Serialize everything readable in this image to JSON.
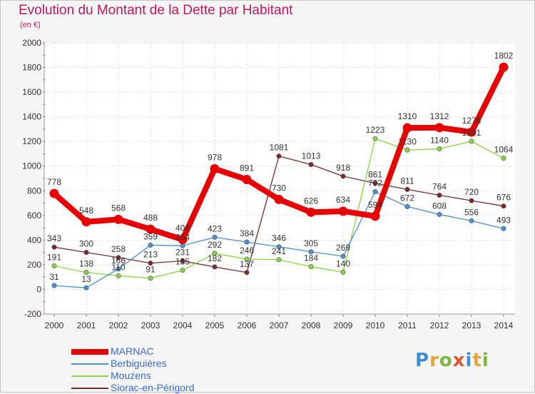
{
  "chart_data": {
    "type": "line",
    "title": "Evolution du Montant de la Dette par Habitant",
    "unit_label": "(en €)",
    "x": [
      "2000",
      "2001",
      "2002",
      "2003",
      "2004",
      "2005",
      "2006",
      "2007",
      "2008",
      "2009",
      "2010",
      "2011",
      "2012",
      "2013",
      "2014"
    ],
    "ylim": [
      -200,
      2000
    ],
    "yticks": [
      -200,
      0,
      200,
      400,
      600,
      800,
      1000,
      1200,
      1400,
      1600,
      1800,
      2000
    ],
    "grid": true,
    "legend_placement": "bottom-left",
    "series": [
      {
        "name": "MARNAC",
        "color": "#e60000",
        "values": [
          778,
          548,
          568,
          488,
          404,
          978,
          891,
          730,
          626,
          634,
          594,
          1310,
          1312,
          1276,
          1802
        ],
        "labels": [
          "778",
          "548",
          "568",
          "488",
          "404",
          "978",
          "891",
          "730",
          "626",
          "634",
          "594",
          "1310",
          "1312",
          "1276",
          "1802"
        ]
      },
      {
        "name": "Berbiguières",
        "color": "#4a8fd0",
        "values": [
          31,
          13,
          166,
          359,
          354,
          423,
          384,
          346,
          305,
          269,
          792,
          672,
          608,
          556,
          493
        ],
        "labels": [
          "31",
          "13",
          "166",
          "359",
          "354",
          "423",
          "384",
          "346",
          "305",
          "269",
          "792",
          "672",
          "608",
          "556",
          "493"
        ]
      },
      {
        "name": "Mouzens",
        "color": "#8ad14a",
        "values": [
          191,
          138,
          110,
          91,
          155,
          292,
          246,
          241,
          184,
          140,
          1223,
          1130,
          1140,
          1201,
          1064
        ],
        "labels": [
          "191",
          "138",
          "110",
          "91",
          "155",
          "292",
          "246",
          "241",
          "184",
          "140",
          "1223",
          "1130",
          "1140",
          "1201",
          "1064"
        ]
      },
      {
        "name": "Siorac-en-Périgord",
        "color": "#7a2a2a",
        "values": [
          343,
          300,
          258,
          213,
          231,
          182,
          137,
          1081,
          1013,
          918,
          861,
          811,
          764,
          720,
          676
        ],
        "labels": [
          "343",
          "300",
          "258",
          "213",
          "231",
          "182",
          "137",
          "1081",
          "1013",
          "918",
          "861",
          "811",
          "764",
          "720",
          "676"
        ]
      }
    ]
  },
  "logo": {
    "letters": [
      "P",
      "r",
      "o",
      "x",
      "i",
      "t",
      "i"
    ]
  }
}
